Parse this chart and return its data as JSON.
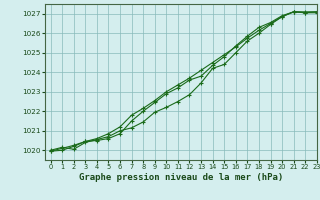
{
  "title": "Graphe pression niveau de la mer (hPa)",
  "bg_color": "#d4eeee",
  "grid_color": "#88bbbb",
  "line_color": "#1a6b1a",
  "marker_color": "#1a6b1a",
  "xlim": [
    -0.5,
    23
  ],
  "ylim": [
    1019.5,
    1027.5
  ],
  "yticks": [
    1020,
    1021,
    1022,
    1023,
    1024,
    1025,
    1026,
    1027
  ],
  "xticks": [
    0,
    1,
    2,
    3,
    4,
    5,
    6,
    7,
    8,
    9,
    10,
    11,
    12,
    13,
    14,
    15,
    16,
    17,
    18,
    19,
    20,
    21,
    22,
    23
  ],
  "series1_x": [
    0,
    1,
    2,
    3,
    4,
    5,
    6,
    7,
    8,
    9,
    10,
    11,
    12,
    13,
    14,
    15,
    16,
    17,
    18,
    19,
    20,
    21,
    22,
    23
  ],
  "series1_y": [
    1020.0,
    1020.15,
    1020.05,
    1020.4,
    1020.55,
    1020.7,
    1021.0,
    1021.15,
    1021.45,
    1021.95,
    1022.2,
    1022.5,
    1022.85,
    1023.45,
    1024.2,
    1024.4,
    1025.0,
    1025.6,
    1026.0,
    1026.45,
    1026.85,
    1027.1,
    1027.05,
    1027.05
  ],
  "series2_x": [
    0,
    1,
    2,
    3,
    4,
    5,
    6,
    7,
    8,
    9,
    10,
    11,
    12,
    13,
    14,
    15,
    16,
    17,
    18,
    19,
    20,
    21,
    22,
    23
  ],
  "series2_y": [
    1019.95,
    1020.1,
    1020.25,
    1020.45,
    1020.5,
    1020.6,
    1020.85,
    1021.5,
    1022.0,
    1022.45,
    1022.9,
    1023.2,
    1023.6,
    1023.8,
    1024.35,
    1024.8,
    1025.35,
    1025.85,
    1026.3,
    1026.55,
    1026.9,
    1027.1,
    1027.1,
    1027.1
  ],
  "series3_x": [
    0,
    1,
    2,
    3,
    4,
    5,
    6,
    7,
    8,
    9,
    10,
    11,
    12,
    13,
    14,
    15,
    16,
    17,
    18,
    19,
    20,
    21,
    22,
    23
  ],
  "series3_y": [
    1019.95,
    1020.0,
    1020.2,
    1020.45,
    1020.6,
    1020.85,
    1021.2,
    1021.8,
    1022.15,
    1022.55,
    1023.0,
    1023.35,
    1023.7,
    1024.1,
    1024.5,
    1024.9,
    1025.3,
    1025.75,
    1026.15,
    1026.5,
    1026.85,
    1027.1,
    1027.05,
    1027.1
  ]
}
